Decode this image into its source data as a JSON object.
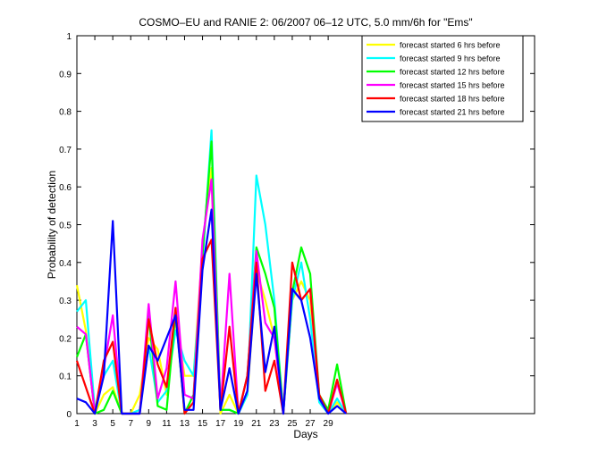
{
  "chart_data": {
    "type": "line",
    "title": "COSMO–EU and RANIE 2: 06/2007 06–12 UTC, 5.0 mm/6h for \"Ems\"",
    "xlabel": "Days",
    "ylabel": "Probability of detection",
    "xlim": [
      1,
      52
    ],
    "ylim": [
      0,
      1
    ],
    "x_ticks": [
      1,
      3,
      5,
      7,
      9,
      11,
      13,
      15,
      17,
      19,
      21,
      23,
      25,
      27,
      29
    ],
    "y_ticks": [
      0,
      0.1,
      0.2,
      0.3,
      0.4,
      0.5,
      0.6,
      0.7,
      0.8,
      0.9,
      1
    ],
    "y_tick_labels": [
      "0",
      "0.1",
      "0.2",
      "0.3",
      "0.4",
      "0.5",
      "0.6",
      "0.7",
      "0.8",
      "0.9",
      "1"
    ],
    "legend_position": "top-right",
    "grid": false,
    "x": [
      1,
      2,
      3,
      4,
      5,
      6,
      7,
      8,
      9,
      10,
      11,
      12,
      13,
      14,
      15,
      16,
      17,
      18,
      19,
      20,
      21,
      22,
      23,
      24,
      25,
      26,
      27,
      28,
      29,
      30,
      31
    ],
    "series": [
      {
        "name": "forecast started 6 hrs before",
        "color": "#ffff00",
        "values": [
          0.34,
          0.22,
          0.0,
          0.05,
          0.07,
          0.0,
          0.0,
          0.05,
          0.2,
          0.17,
          0.05,
          0.25,
          0.1,
          0.1,
          0.44,
          0.65,
          0.0,
          0.05,
          0.0,
          0.05,
          0.38,
          0.3,
          0.2,
          0.0,
          0.3,
          0.35,
          0.3,
          0.04,
          0.0,
          0.03,
          0.0
        ]
      },
      {
        "name": "forecast started 9 hrs before",
        "color": "#00ffff",
        "values": [
          0.27,
          0.3,
          0.01,
          0.1,
          0.14,
          0.0,
          0.0,
          0.01,
          0.18,
          0.03,
          0.06,
          0.22,
          0.14,
          0.1,
          0.4,
          0.75,
          0.01,
          0.01,
          0.0,
          0.05,
          0.63,
          0.5,
          0.3,
          0.0,
          0.3,
          0.4,
          0.25,
          0.03,
          0.0,
          0.04,
          0.0
        ]
      },
      {
        "name": "forecast started 12 hrs before",
        "color": "#00ff00",
        "values": [
          0.15,
          0.21,
          0.0,
          0.01,
          0.06,
          0.0,
          0.0,
          0.0,
          0.26,
          0.02,
          0.01,
          0.27,
          0.0,
          0.05,
          0.42,
          0.72,
          0.01,
          0.01,
          0.0,
          0.1,
          0.44,
          0.37,
          0.28,
          0.0,
          0.32,
          0.44,
          0.37,
          0.05,
          0.01,
          0.13,
          0.0
        ]
      },
      {
        "name": "forecast started 15 hrs before",
        "color": "#ff00ff",
        "values": [
          0.23,
          0.21,
          0.0,
          0.12,
          0.26,
          0.0,
          0.0,
          0.0,
          0.29,
          0.04,
          0.12,
          0.35,
          0.05,
          0.04,
          0.46,
          0.62,
          0.01,
          0.37,
          0.0,
          0.1,
          0.43,
          0.24,
          0.2,
          0.0,
          0.33,
          0.3,
          0.33,
          0.04,
          0.0,
          0.08,
          0.0
        ]
      },
      {
        "name": "forecast started 18 hrs before",
        "color": "#ff0000",
        "values": [
          0.14,
          0.07,
          0.0,
          0.14,
          0.19,
          0.0,
          0.0,
          0.0,
          0.25,
          0.13,
          0.07,
          0.28,
          0.0,
          0.03,
          0.41,
          0.46,
          0.01,
          0.23,
          0.0,
          0.1,
          0.4,
          0.06,
          0.14,
          0.0,
          0.4,
          0.3,
          0.33,
          0.05,
          0.0,
          0.09,
          0.0
        ]
      },
      {
        "name": "forecast started 21 hrs before",
        "color": "#0000ff",
        "values": [
          0.04,
          0.03,
          0.0,
          0.1,
          0.51,
          0.0,
          0.0,
          0.0,
          0.18,
          0.14,
          0.2,
          0.26,
          0.01,
          0.01,
          0.38,
          0.54,
          0.01,
          0.12,
          0.0,
          0.06,
          0.37,
          0.11,
          0.23,
          0.0,
          0.33,
          0.3,
          0.2,
          0.04,
          0.0,
          0.02,
          0.0
        ]
      }
    ]
  }
}
